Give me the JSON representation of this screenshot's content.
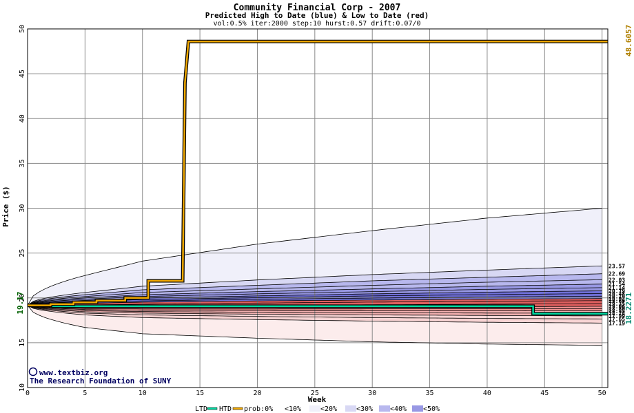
{
  "chart_data": {
    "type": "area",
    "title": "Community Financial Corp - 2007",
    "subtitle": "Predicted High to Date (blue) &  Low to Date (red)",
    "params": "vol:0.5% iter:2000 step:10 hurst:0.57 drift:0.07/0",
    "xlabel": "Week",
    "ylabel": "Price ($)",
    "xlim": [
      0,
      50.5
    ],
    "ylim": [
      10,
      50
    ],
    "xticks": [
      0,
      5,
      10,
      15,
      20,
      25,
      30,
      35,
      40,
      45,
      50
    ],
    "yticks": [
      10,
      15,
      20,
      25,
      30,
      35,
      40,
      45,
      50
    ],
    "grid": true,
    "start_price_label": "19.17",
    "start_price": 19.17,
    "htd_end_label": "48.6057",
    "htd_end": 48.6057,
    "ltd_end_label": "18.2271",
    "ltd_end": 18.2271,
    "right_labels_high": [
      "23.57",
      "22.69",
      "22.03",
      "21.54",
      "21.14",
      "20.79",
      "20.48",
      "20.19",
      "19.92"
    ],
    "right_labels_low": [
      "19.69",
      "19.35",
      "19.06",
      "18.80",
      "18.55",
      "18.28",
      "17.99",
      "17.65",
      "17.19"
    ],
    "high_bands": [
      {
        "name": "outer",
        "values": [
          19.17,
          22.5,
          24.1,
          26.0,
          27.5,
          28.9,
          30.0
        ]
      },
      {
        "name": "p1",
        "values": [
          19.17,
          20.6,
          21.3,
          22.0,
          22.6,
          23.1,
          23.57
        ]
      },
      {
        "name": "p2",
        "values": [
          19.17,
          20.35,
          20.9,
          21.4,
          21.9,
          22.3,
          22.69
        ]
      },
      {
        "name": "p3",
        "values": [
          19.17,
          20.15,
          20.6,
          21.0,
          21.4,
          21.75,
          22.03
        ]
      },
      {
        "name": "p4",
        "values": [
          19.17,
          20.0,
          20.35,
          20.7,
          21.0,
          21.3,
          21.54
        ]
      },
      {
        "name": "p5",
        "values": [
          19.17,
          19.85,
          20.15,
          20.45,
          20.7,
          20.95,
          21.14
        ]
      },
      {
        "name": "p6",
        "values": [
          19.17,
          19.72,
          19.98,
          20.22,
          20.45,
          20.63,
          20.79
        ]
      },
      {
        "name": "p7",
        "values": [
          19.17,
          19.6,
          19.82,
          20.02,
          20.22,
          20.36,
          20.48
        ]
      },
      {
        "name": "p8",
        "values": [
          19.17,
          19.48,
          19.66,
          19.84,
          19.98,
          20.1,
          20.19
        ]
      },
      {
        "name": "p9",
        "values": [
          19.17,
          19.38,
          19.52,
          19.66,
          19.76,
          19.85,
          19.92
        ]
      }
    ],
    "low_bands": [
      {
        "name": "p1",
        "values": [
          19.17,
          19.2,
          19.3,
          19.42,
          19.53,
          19.62,
          19.69
        ]
      },
      {
        "name": "p2",
        "values": [
          19.17,
          19.02,
          19.1,
          19.16,
          19.23,
          19.3,
          19.35
        ]
      },
      {
        "name": "p3",
        "values": [
          19.17,
          18.9,
          18.92,
          18.95,
          18.98,
          19.02,
          19.06
        ]
      },
      {
        "name": "p4",
        "values": [
          19.17,
          18.8,
          18.77,
          18.77,
          18.78,
          18.79,
          18.8
        ]
      },
      {
        "name": "p5",
        "values": [
          19.17,
          18.7,
          18.62,
          18.59,
          18.57,
          18.56,
          18.55
        ]
      },
      {
        "name": "p6",
        "values": [
          19.17,
          18.58,
          18.47,
          18.4,
          18.35,
          18.31,
          18.28
        ]
      },
      {
        "name": "p7",
        "values": [
          19.17,
          18.45,
          18.3,
          18.18,
          18.1,
          18.04,
          17.99
        ]
      },
      {
        "name": "p8",
        "values": [
          19.17,
          18.3,
          18.1,
          17.93,
          17.8,
          17.71,
          17.65
        ]
      },
      {
        "name": "p9",
        "values": [
          19.17,
          18.1,
          17.8,
          17.58,
          17.41,
          17.28,
          17.19
        ]
      },
      {
        "name": "outer",
        "values": [
          19.17,
          16.7,
          16.0,
          15.5,
          15.1,
          14.85,
          14.7
        ]
      }
    ],
    "band_x": [
      0,
      5,
      10,
      20,
      30,
      40,
      50
    ],
    "htd_line": {
      "x": [
        0,
        2,
        2,
        4,
        4,
        6,
        6,
        8.5,
        8.5,
        10.5,
        10.5,
        13.5,
        13.7,
        14,
        50.5
      ],
      "y": [
        19.17,
        19.17,
        19.3,
        19.3,
        19.5,
        19.5,
        19.7,
        19.7,
        20.0,
        20.0,
        21.9,
        21.9,
        44.0,
        48.6,
        48.6
      ]
    },
    "ltd_line": {
      "x": [
        0,
        2,
        2,
        44,
        44,
        50.5
      ],
      "y": [
        19.17,
        19.17,
        19.07,
        19.07,
        18.23,
        18.23
      ]
    },
    "colors": {
      "htd": "#f0a800",
      "ltd": "#00d8a0",
      "prob_0": "#ffffff",
      "prob_10": "#f0f0fa",
      "prob_20": "#d8d8f4",
      "prob_30": "#b8b8ee",
      "prob_40": "#9898e4",
      "prob_50": "#7070d8",
      "low_10": "#fcecec",
      "low_20": "#f8d4d4",
      "low_30": "#f2b0b0",
      "low_40": "#ec9090",
      "low_50": "#e06060",
      "htd_label": "#b08000",
      "ltd_label": "#008870",
      "start_label": "#006000",
      "credit": "#000060"
    },
    "legend": {
      "ltd": "LTD",
      "htd": "HTD",
      "prob": "prob:0%",
      "lt10": "<10%",
      "lt20": "<20%",
      "lt30": "<30%",
      "lt40": "<40%",
      "lt50": "<50%"
    },
    "credit_line1": "www.textbiz.org",
    "credit_line2": "The Research Foundation of SUNY",
    "copyright_symbol": "©"
  }
}
